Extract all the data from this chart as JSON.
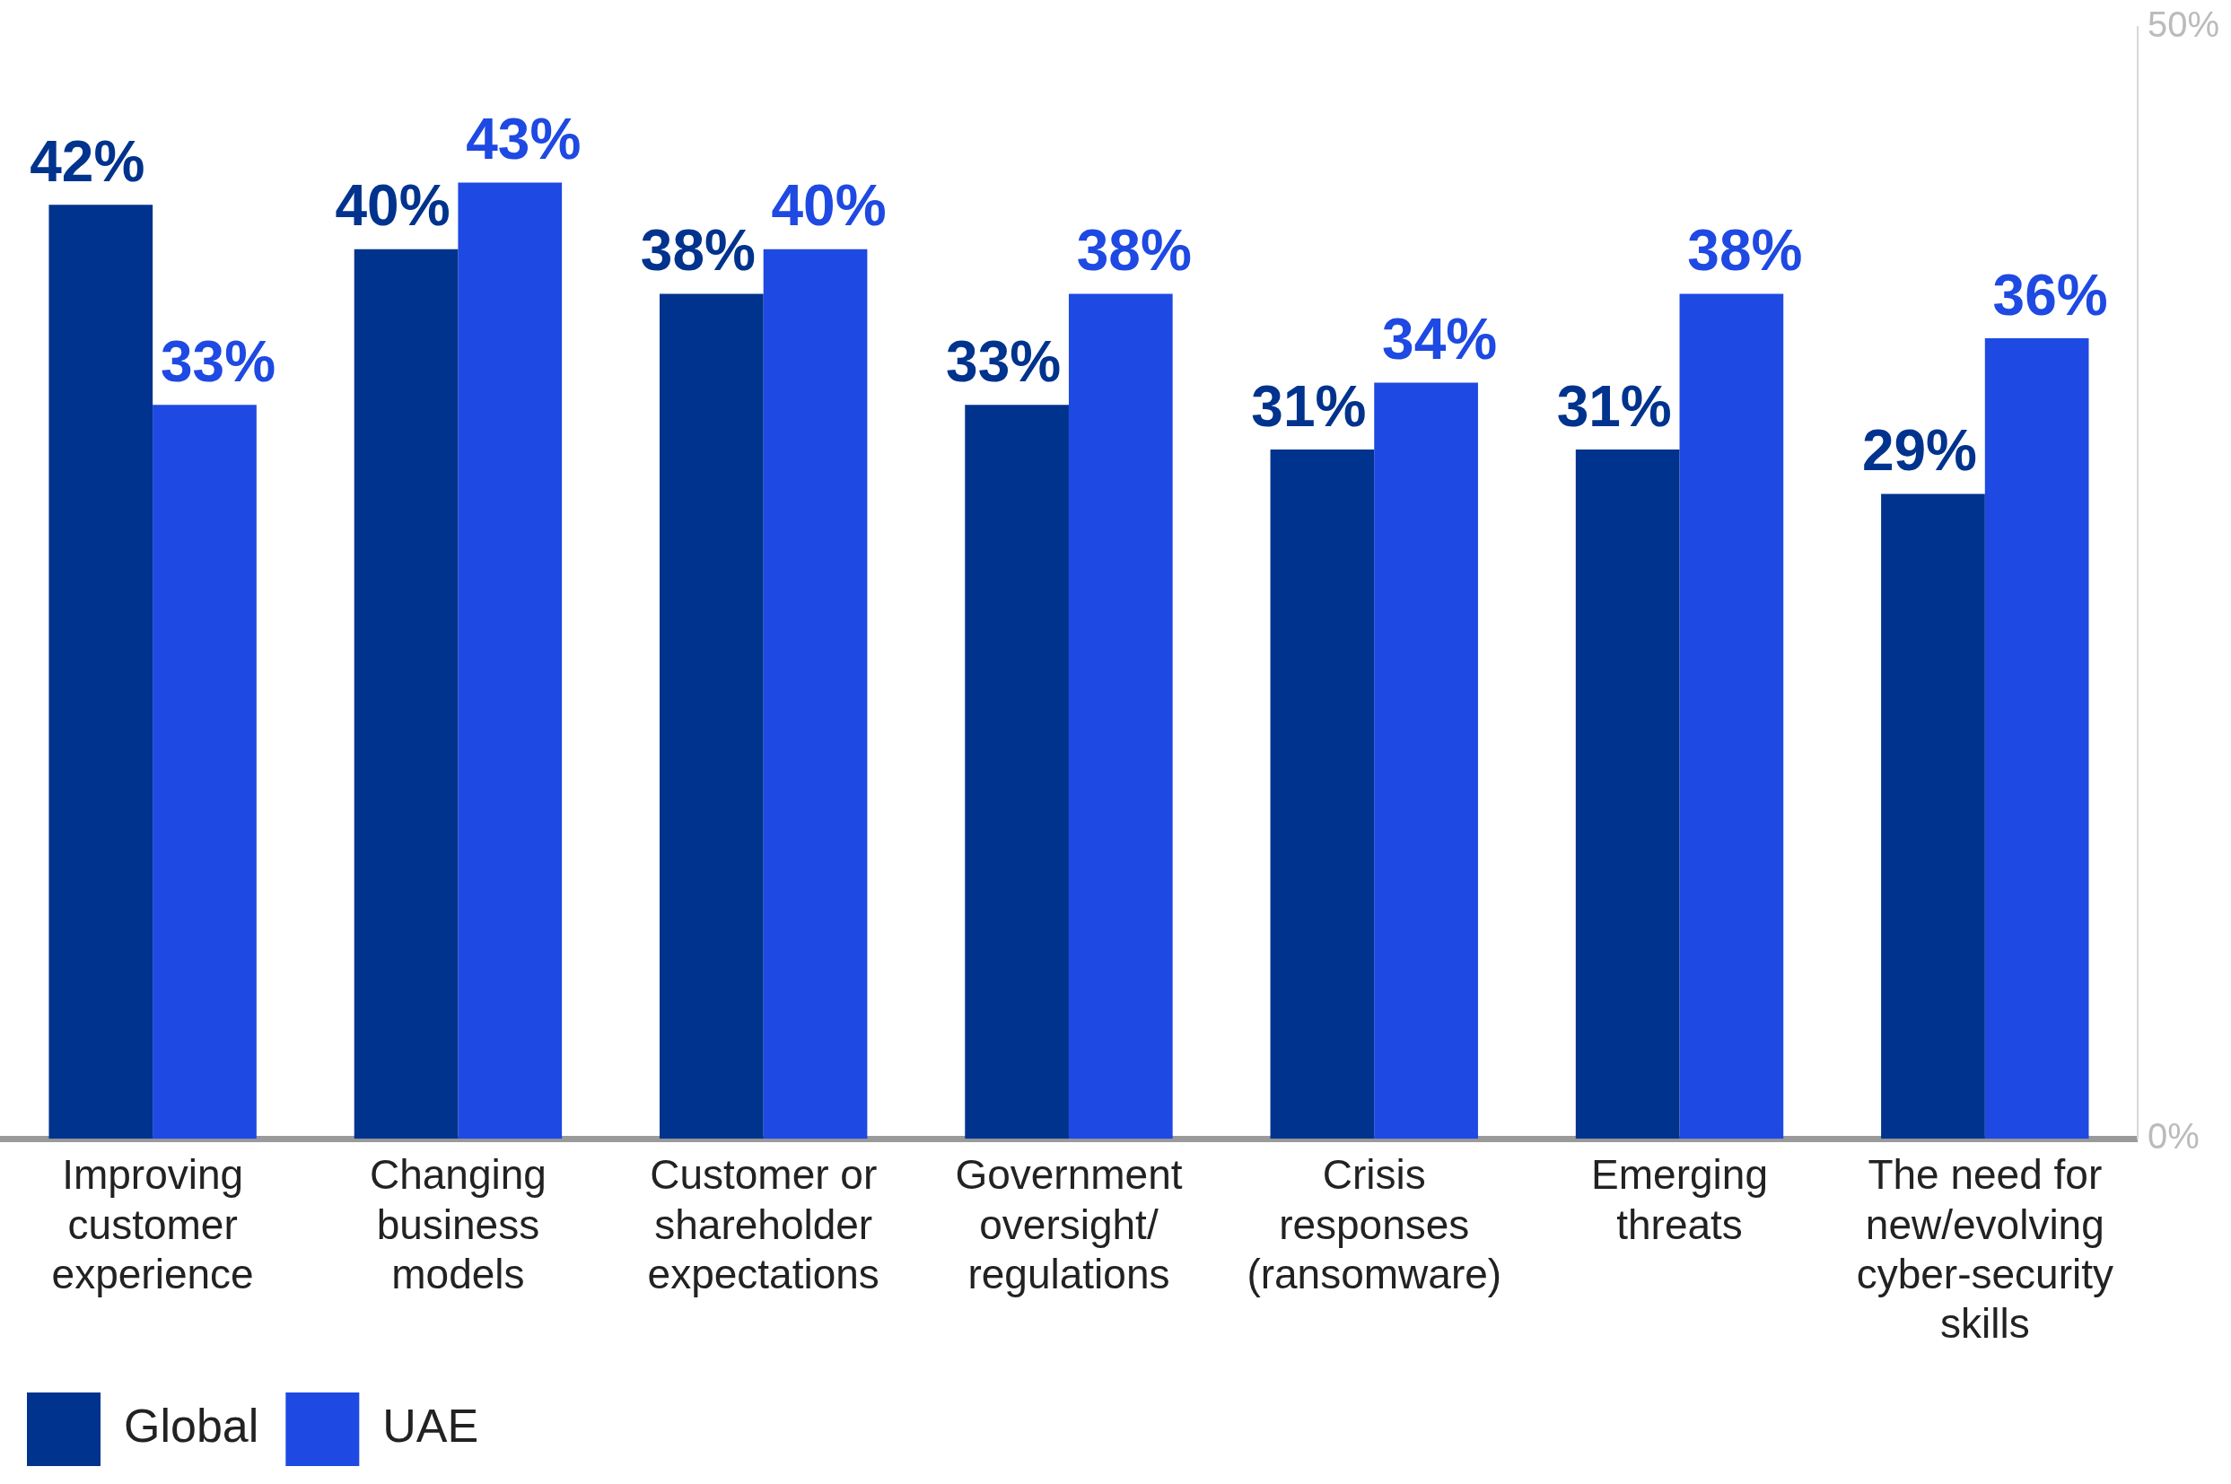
{
  "chart_data": {
    "type": "bar",
    "categories": [
      "Improving customer experience",
      "Changing business models",
      "Customer or shareholder expectations",
      "Government oversight/ regulations",
      "Crisis responses (ransomware)",
      "Emerging threats",
      "The need for new/evolving cyber-security skills"
    ],
    "series": [
      {
        "name": "Global",
        "color": "#00338d",
        "values": [
          42,
          40,
          38,
          33,
          31,
          31,
          29
        ],
        "value_labels": [
          "42%",
          "40%",
          "38%",
          "33%",
          "31%",
          "31%",
          "29%"
        ]
      },
      {
        "name": "UAE",
        "color": "#1e49e2",
        "values": [
          33,
          43,
          40,
          38,
          34,
          38,
          36
        ],
        "value_labels": [
          "33%",
          "43%",
          "40%",
          "38%",
          "34%",
          "38%",
          "36%"
        ]
      }
    ],
    "ylim": [
      0,
      50
    ],
    "yticks": [
      {
        "value": 0,
        "label": "0%"
      },
      {
        "value": 50,
        "label": "50%"
      }
    ],
    "grid": false,
    "legend": "bottom left"
  }
}
